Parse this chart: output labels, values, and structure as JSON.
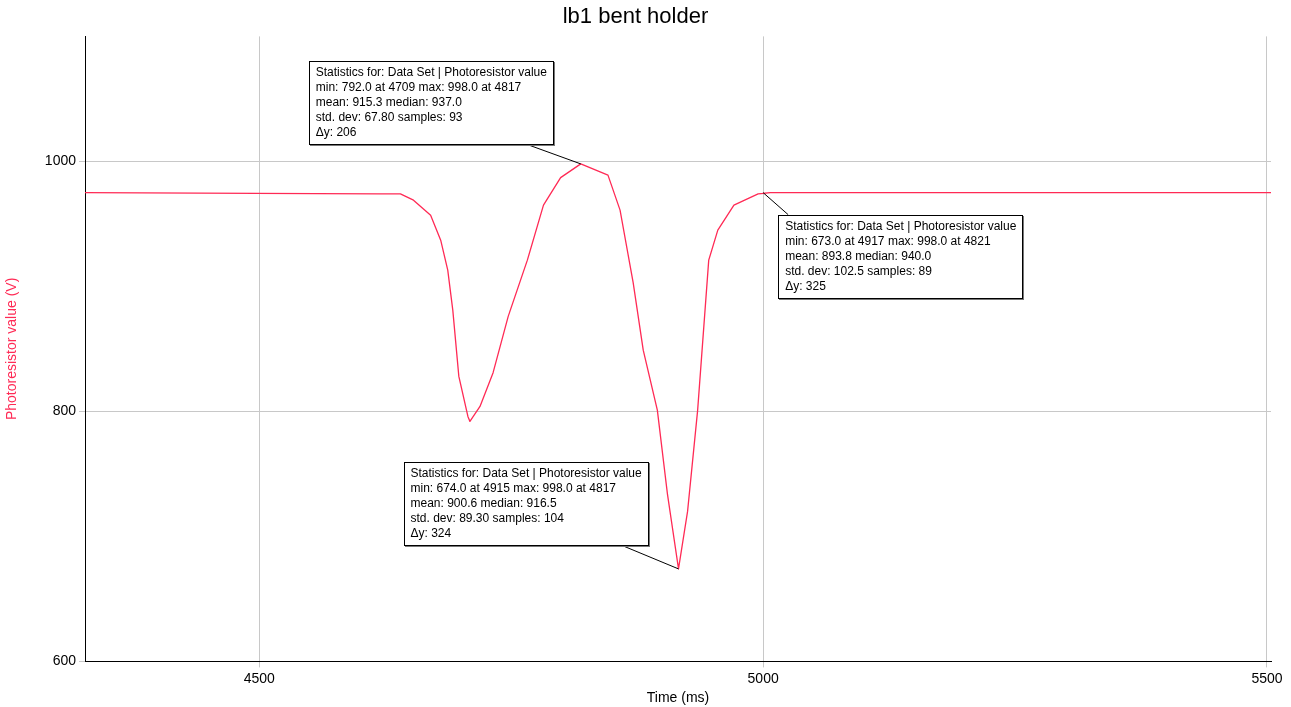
{
  "chart_data": {
    "type": "line",
    "title": "lb1 bent holder",
    "xlabel": "Time (ms)",
    "ylabel": "Photoresistor value (V)",
    "x": [
      4327,
      4620,
      4640,
      4653,
      4670,
      4680,
      4687,
      4692,
      4698,
      4707,
      4709,
      4719,
      4732,
      4747,
      4766,
      4782,
      4799,
      4819,
      4846,
      4858,
      4871,
      4881,
      4895,
      4905,
      4916,
      4925,
      4935,
      4946,
      4955,
      4971,
      4995,
      5007,
      5504
    ],
    "series": [
      {
        "color": "#ff2a55",
        "values": [
          975,
          974,
          974,
          969,
          957,
          937,
          913,
          881,
          828,
          796,
          792,
          804,
          831,
          876,
          921,
          965,
          987,
          998,
          989,
          961,
          903,
          849,
          801,
          734,
          674,
          720,
          801,
          921,
          945,
          965,
          974,
          975,
          975
        ]
      }
    ],
    "xlim": [
      4327,
      5504
    ],
    "xticks": [
      4500,
      5000,
      5500
    ],
    "ylim": [
      600,
      1100
    ],
    "yticks": [
      600,
      800,
      1000
    ],
    "grid": true,
    "legend": false,
    "marker": "none",
    "line_style": "solid",
    "annotations": [
      {
        "text": "Statistics for: Data Set | Photoresistor value\nmin: 792.0 at 4709 max: 998.0 at 4817\nmean: 915.3 median: 937.0\nstd. dev: 67.80 samples: 93\nΔy: 206",
        "x": 4819,
        "y": 998
      },
      {
        "text": "Statistics for: Data Set | Photoresistor value\nmin: 674.0 at 4915 max: 998.0 at 4817\nmean: 900.6 median: 916.5\nstd. dev: 89.30 samples: 104\nΔy: 324",
        "x": 4916,
        "y": 674
      },
      {
        "text": "Statistics for: Data Set | Photoresistor value\nmin: 673.0 at 4917 max: 998.0 at 4821\nmean: 893.8 median: 940.0\nstd. dev: 102.5 samples: 89\nΔy: 325",
        "x": 5000,
        "y": 975
      }
    ]
  }
}
